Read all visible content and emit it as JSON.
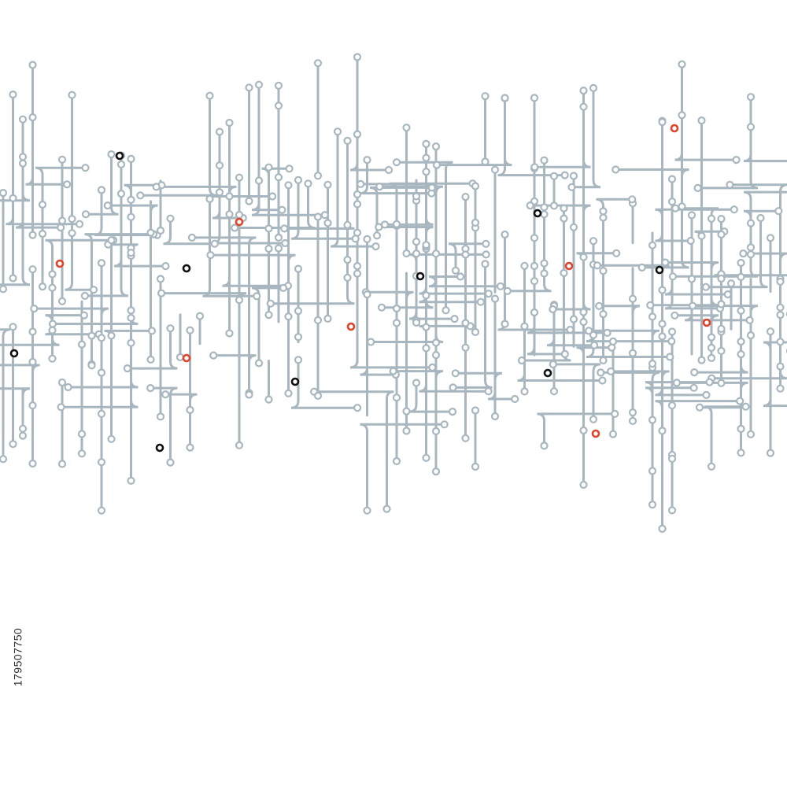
{
  "watermark": {
    "id": "179507750"
  }
}
